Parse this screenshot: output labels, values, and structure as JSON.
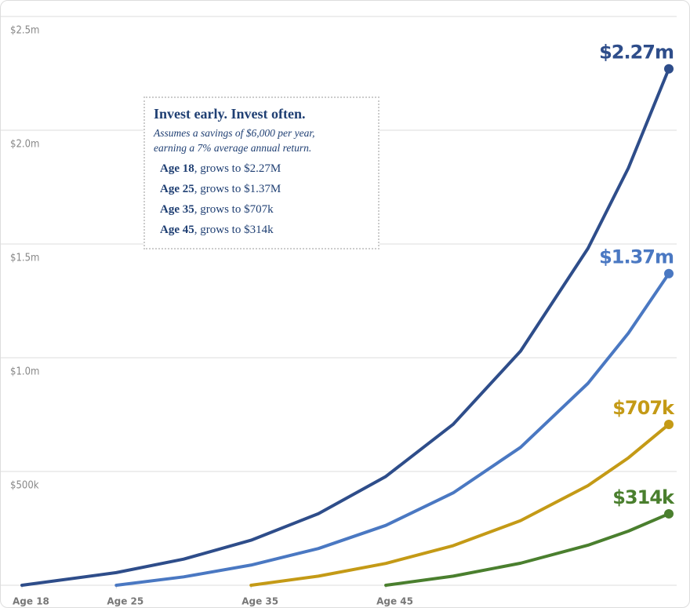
{
  "chart_data": {
    "type": "line",
    "x": [
      18,
      25,
      30,
      35,
      40,
      45,
      50,
      55,
      60,
      63,
      66
    ],
    "series": [
      {
        "name": "Age 18",
        "color": "#2e4d8a",
        "values": [
          0,
          55600,
          114800,
          198000,
          314600,
          478200,
          707600,
          1029400,
          1480600,
          1834000,
          2270000
        ],
        "end_label": "$2.27m"
      },
      {
        "name": "Age 25",
        "color": "#4a78c2",
        "values": [
          null,
          0,
          36900,
          88700,
          161400,
          263200,
          406100,
          606300,
          887500,
          1108000,
          1370000
        ],
        "end_label": "$1.37m"
      },
      {
        "name": "Age 35",
        "color": "#c49a16",
        "values": [
          null,
          null,
          null,
          0,
          40000,
          96000,
          174000,
          284000,
          438000,
          560000,
          707000
        ],
        "end_label": "$707k"
      },
      {
        "name": "Age 45",
        "color": "#4a7f2e",
        "values": [
          null,
          null,
          null,
          null,
          null,
          0,
          40000,
          97000,
          176000,
          238000,
          314000
        ],
        "end_label": "$314k"
      }
    ],
    "xlim": [
      18,
      66
    ],
    "xticks": [
      {
        "value": 18,
        "label": "Age 18"
      },
      {
        "value": 25,
        "label": "Age 25"
      },
      {
        "value": 35,
        "label": "Age 35"
      },
      {
        "value": 45,
        "label": "Age 45"
      }
    ],
    "ylim": [
      0,
      2500000
    ],
    "yticks": [
      {
        "value": 500000,
        "label": "$500k"
      },
      {
        "value": 1000000,
        "label": "$1.0m"
      },
      {
        "value": 1500000,
        "label": "$1.5m"
      },
      {
        "value": 2000000,
        "label": "$2.0m"
      },
      {
        "value": 2500000,
        "label": "$2.5m"
      }
    ],
    "grid": true,
    "annotation": {
      "title": "Invest early. Invest often.",
      "subtitle": [
        "Assumes a savings of $6,000 per year,",
        "earning a 7% average annual return."
      ],
      "items": [
        {
          "lead": "Age 18",
          "rest": ", grows to $2.27M"
        },
        {
          "lead": "Age 25",
          "rest": ", grows to $1.37M"
        },
        {
          "lead": "Age 35",
          "rest": ", grows to $707k"
        },
        {
          "lead": "Age 45",
          "rest": ", grows to $314k"
        }
      ]
    }
  }
}
